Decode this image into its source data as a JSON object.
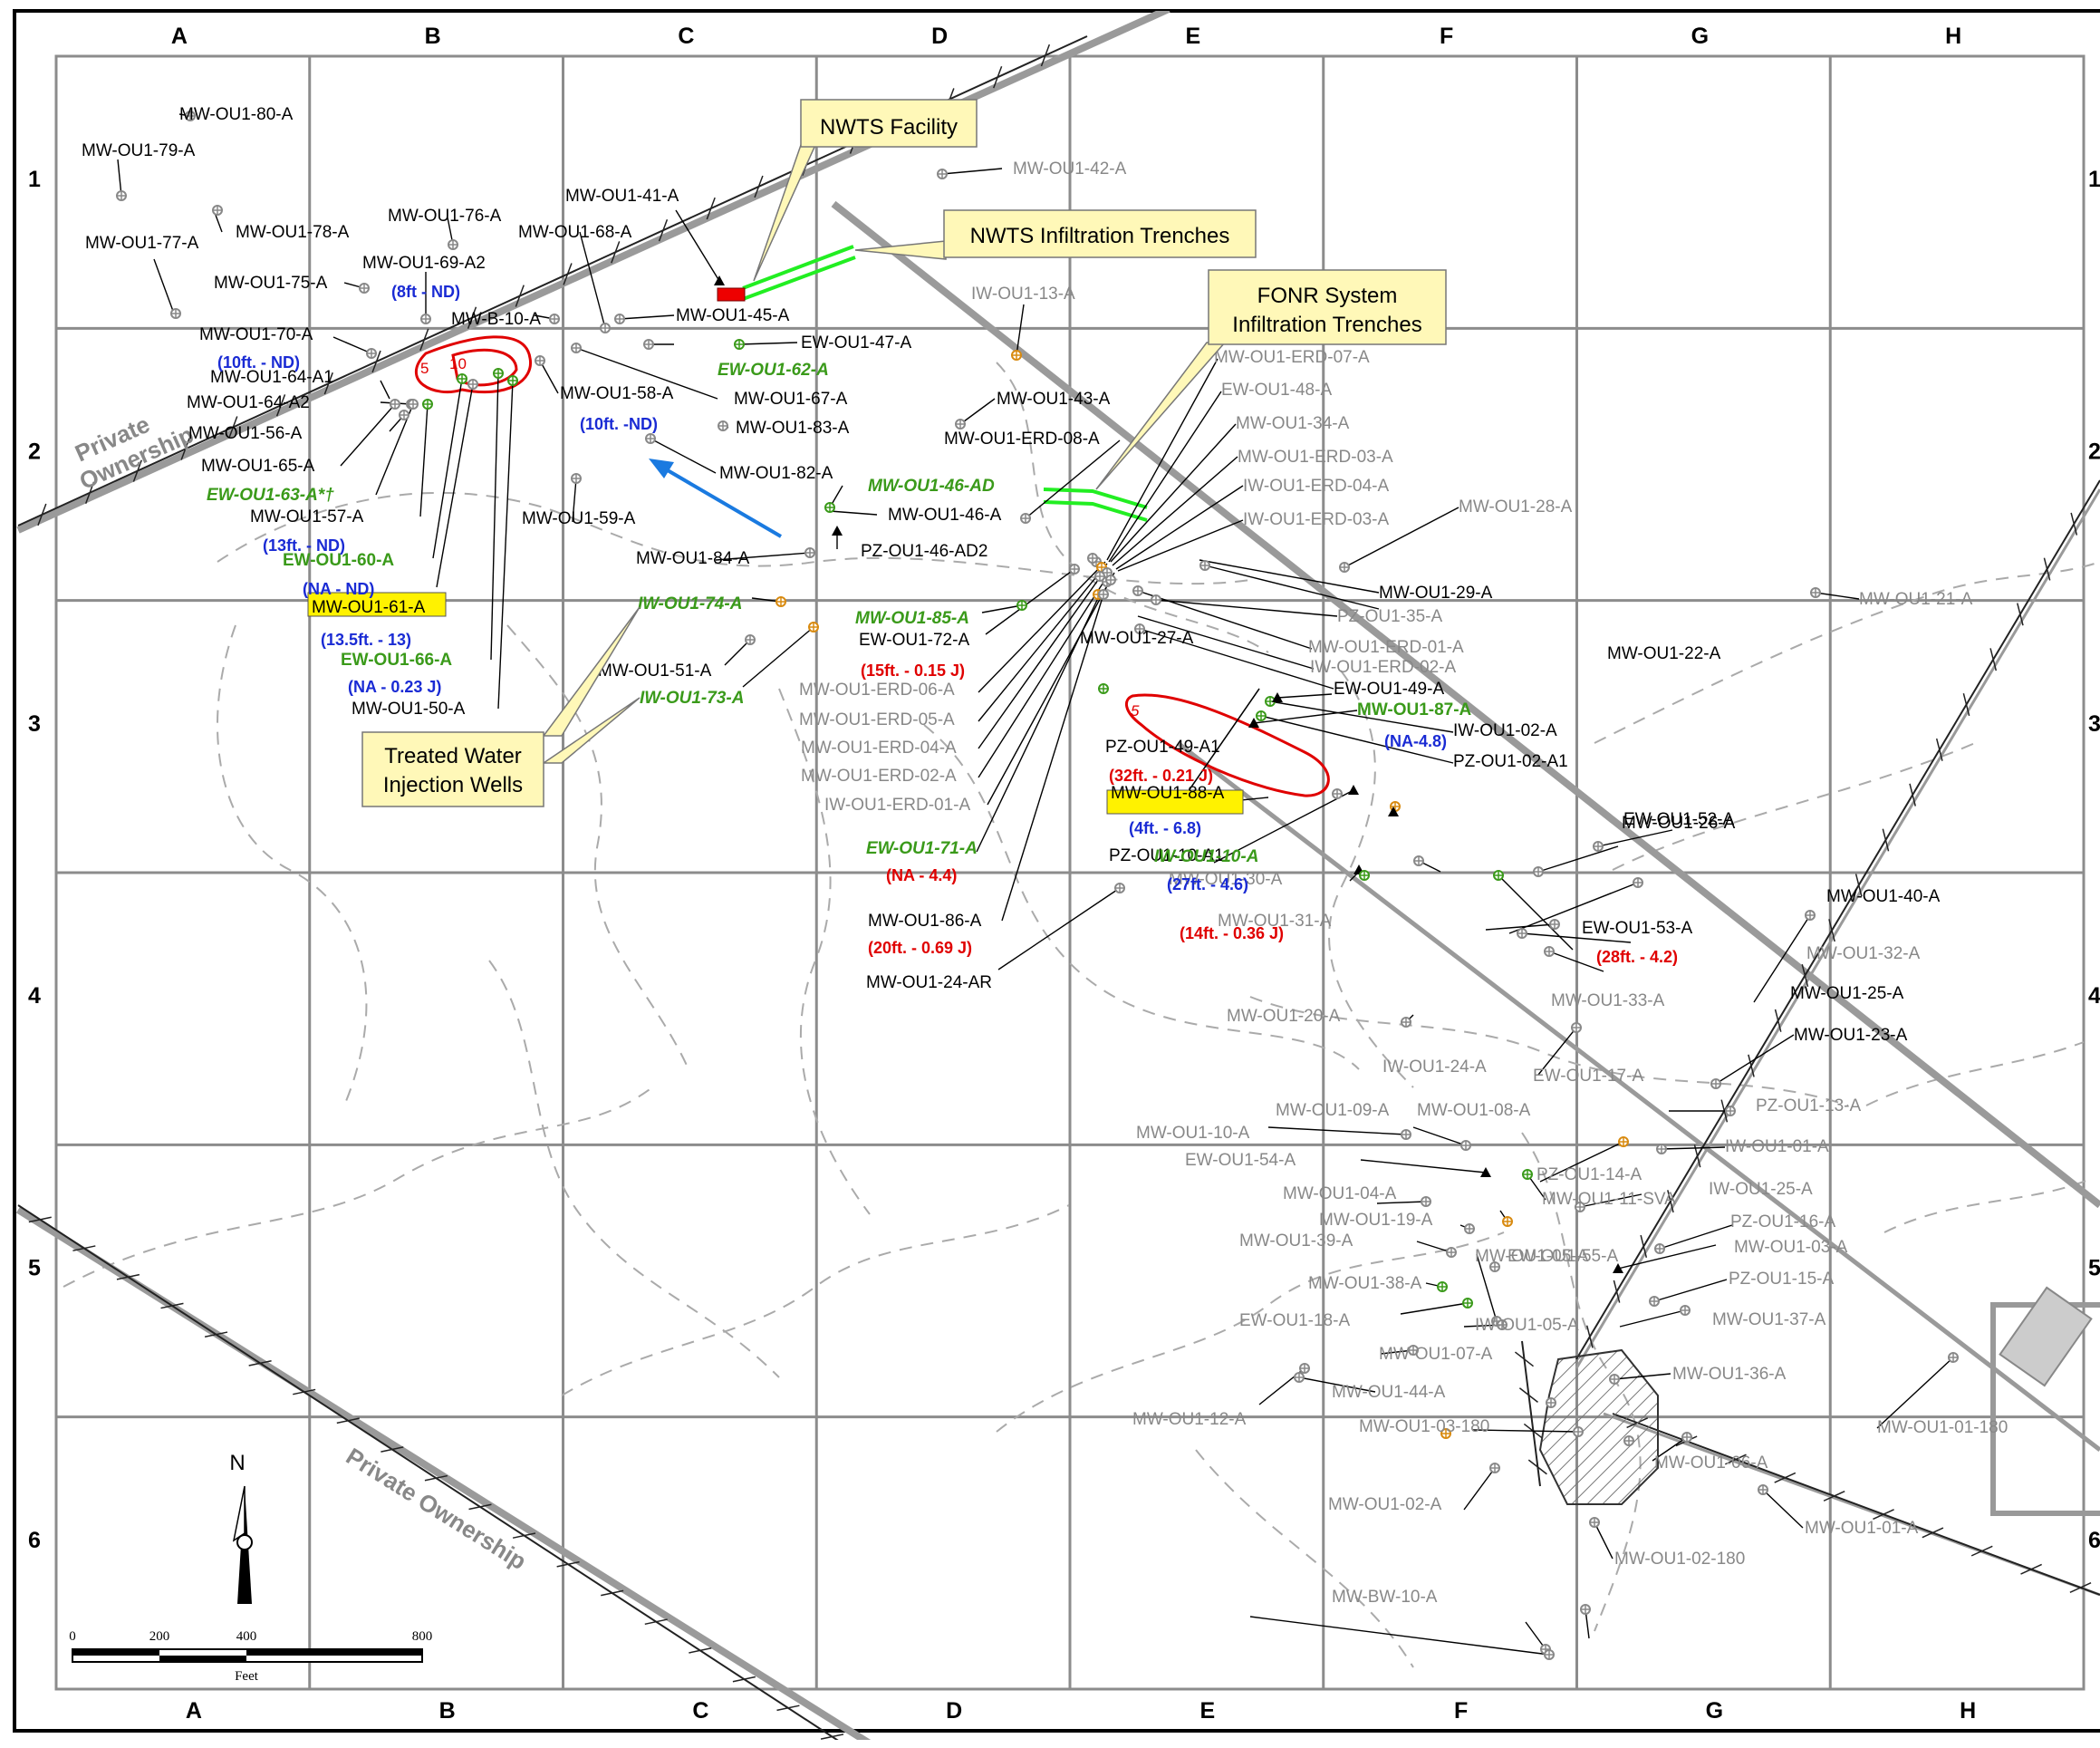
{
  "grid": {
    "columns": [
      "A",
      "B",
      "C",
      "D",
      "E",
      "F",
      "G",
      "H"
    ],
    "rows": [
      "1",
      "2",
      "3",
      "4",
      "5",
      "6"
    ]
  },
  "callouts": {
    "nwts_facility": "NWTS Facility",
    "nwts_trenches": "NWTS Infiltration Trenches",
    "fonr_line1": "FONR System",
    "fonr_line2": "Infiltration Trenches",
    "treated_line1": "Treated Water",
    "treated_line2": "Injection Wells"
  },
  "ownership_label": "Private Ownership",
  "ownership_label_upper": [
    "Private",
    "Ownership"
  ],
  "contour_labels": [
    "5",
    "10",
    "5"
  ],
  "scale_bar": {
    "ticks": [
      "0",
      "200",
      "400",
      "800"
    ],
    "unit": "Feet"
  },
  "north_arrow": "N",
  "colors": {
    "grid": "#8c8c8c",
    "trench": "#22ee22",
    "facility": "#ee0000",
    "callout_fill": "#fff8b8",
    "highlight": "#fff200",
    "flow_arrow": "#1a7ae0",
    "ndvalue": "#1a2bd4",
    "detect": "#e00000",
    "green_well": "#3a9a1a"
  },
  "wells": [
    {
      "label": "MW-OU1-80-A",
      "style": "wl"
    },
    {
      "label": "MW-OU1-79-A",
      "style": "wl"
    },
    {
      "label": "MW-OU1-78-A",
      "style": "wl"
    },
    {
      "label": "MW-OU1-77-A",
      "style": "wl"
    },
    {
      "label": "MW-OU1-76-A",
      "style": "wl"
    },
    {
      "label": "MW-OU1-69-A2",
      "style": "wl"
    },
    {
      "label": "MW-OU1-75-A",
      "style": "wl"
    },
    {
      "label": "MW-OU1-41-A",
      "style": "wl"
    },
    {
      "label": "MW-OU1-68-A",
      "style": "wl"
    },
    {
      "label": "MW-B-10-A",
      "style": "wl"
    },
    {
      "label": "MW-OU1-45-A",
      "style": "wl"
    },
    {
      "label": "MW-OU1-70-A",
      "style": "wl"
    },
    {
      "label": "EW-OU1-47-A",
      "style": "wl"
    },
    {
      "label": "EW-OU1-62-A",
      "style": "wgr"
    },
    {
      "label": "MW-OU1-64-A1",
      "style": "wl"
    },
    {
      "label": "MW-OU1-64-A2",
      "style": "wl"
    },
    {
      "label": "MW-OU1-58-A",
      "style": "wl"
    },
    {
      "label": "MW-OU1-67-A",
      "style": "wl"
    },
    {
      "label": "MW-OU1-56-A",
      "style": "wl"
    },
    {
      "label": "MW-OU1-83-A",
      "style": "wl"
    },
    {
      "label": "MW-OU1-65-A",
      "style": "wl"
    },
    {
      "label": "MW-OU1-82-A",
      "style": "wl"
    },
    {
      "label": "EW-OU1-63-A*†",
      "style": "wgr"
    },
    {
      "label": "MW-OU1-57-A",
      "style": "wl"
    },
    {
      "label": "MW-OU1-59-A",
      "style": "wl"
    },
    {
      "label": "EW-OU1-60-A",
      "style": "wgb"
    },
    {
      "label": "MW-OU1-84-A",
      "style": "wl"
    },
    {
      "label": "MW-OU1-61-A",
      "style": "wl"
    },
    {
      "label": "IW-OU1-74-A",
      "style": "wgr"
    },
    {
      "label": "EW-OU1-66-A",
      "style": "wgb"
    },
    {
      "label": "MW-OU1-50-A",
      "style": "wl"
    },
    {
      "label": "MW-OU1-51-A",
      "style": "wl"
    },
    {
      "label": "IW-OU1-73-A",
      "style": "wgr"
    },
    {
      "label": "MW-OU1-42-A",
      "style": "wg"
    },
    {
      "label": "IW-OU1-13-A",
      "style": "wg"
    },
    {
      "label": "MW-OU1-43-A",
      "style": "wl"
    },
    {
      "label": "MW-OU1-ERD-08-A",
      "style": "wl"
    },
    {
      "label": "MW-OU1-46-AD",
      "style": "wgr"
    },
    {
      "label": "MW-OU1-46-A",
      "style": "wl"
    },
    {
      "label": "PZ-OU1-46-AD2",
      "style": "wl"
    },
    {
      "label": "MW-OU1-85-A",
      "style": "wgr"
    },
    {
      "label": "EW-OU1-72-A",
      "style": "wl"
    },
    {
      "label": "MW-OU1-ERD-06-A",
      "style": "wg"
    },
    {
      "label": "MW-OU1-ERD-05-A",
      "style": "wg"
    },
    {
      "label": "MW-OU1-ERD-04-A",
      "style": "wg"
    },
    {
      "label": "MW-OU1-ERD-02-A",
      "style": "wg"
    },
    {
      "label": "IW-OU1-ERD-01-A",
      "style": "wg"
    },
    {
      "label": "EW-OU1-71-A",
      "style": "wgr"
    },
    {
      "label": "MW-OU1-86-A",
      "style": "wl"
    },
    {
      "label": "MW-OU1-24-AR",
      "style": "wl"
    },
    {
      "label": "MW-OU1-ERD-07-A",
      "style": "wg"
    },
    {
      "label": "EW-OU1-48-A",
      "style": "wg"
    },
    {
      "label": "MW-OU1-34-A",
      "style": "wg"
    },
    {
      "label": "MW-OU1-ERD-03-A",
      "style": "wg"
    },
    {
      "label": "IW-OU1-ERD-04-A",
      "style": "wg"
    },
    {
      "label": "IW-OU1-ERD-03-A",
      "style": "wg"
    },
    {
      "label": "MW-OU1-28-A",
      "style": "wg"
    },
    {
      "label": "MW-OU1-29-A",
      "style": "wl"
    },
    {
      "label": "MW-OU1-27-A",
      "style": "wl"
    },
    {
      "label": "PZ-OU1-35-A",
      "style": "wg"
    },
    {
      "label": "MW-OU1-ERD-01-A",
      "style": "wg"
    },
    {
      "label": "IW-OU1-ERD-02-A",
      "style": "wg"
    },
    {
      "label": "EW-OU1-49-A",
      "style": "wl"
    },
    {
      "label": "MW-OU1-87-A",
      "style": "wgb"
    },
    {
      "label": "PZ-OU1-49-A1",
      "style": "wl"
    },
    {
      "label": "IW-OU1-02-A",
      "style": "wl"
    },
    {
      "label": "PZ-OU1-02-A1",
      "style": "wl"
    },
    {
      "label": "MW-OU1-88-A",
      "style": "wl"
    },
    {
      "label": "MW-OU1-26-A",
      "style": "wl"
    },
    {
      "label": "PZ-OU1-10-A1",
      "style": "wl"
    },
    {
      "label": "IW-OU1-10-A",
      "style": "wgr"
    },
    {
      "label": "MW-OU1-30-A",
      "style": "wg"
    },
    {
      "label": "MW-OU1-31-A",
      "style": "wg"
    },
    {
      "label": "MW-OU1-22-A",
      "style": "wl"
    },
    {
      "label": "MW-OU1-21-A",
      "style": "wg"
    },
    {
      "label": "EW-OU1-52-A",
      "style": "wl"
    },
    {
      "label": "MW-OU1-40-A",
      "style": "wl"
    },
    {
      "label": "EW-OU1-53-A",
      "style": "wl"
    },
    {
      "label": "MW-OU1-32-A",
      "style": "wg"
    },
    {
      "label": "MW-OU1-33-A",
      "style": "wg"
    },
    {
      "label": "MW-OU1-25-A",
      "style": "wl"
    },
    {
      "label": "MW-OU1-23-A",
      "style": "wl"
    },
    {
      "label": "MW-OU1-20-A",
      "style": "wg"
    },
    {
      "label": "IW-OU1-24-A",
      "style": "wg"
    },
    {
      "label": "EW-OU1-17-A",
      "style": "wg"
    },
    {
      "label": "PZ-OU1-13-A",
      "style": "wg"
    },
    {
      "label": "MW-OU1-09-A",
      "style": "wg"
    },
    {
      "label": "MW-OU1-08-A",
      "style": "wg"
    },
    {
      "label": "MW-OU1-10-A",
      "style": "wg"
    },
    {
      "label": "IW-OU1-01-A",
      "style": "wg"
    },
    {
      "label": "EW-OU1-54-A",
      "style": "wg"
    },
    {
      "label": "PZ-OU1-14-A",
      "style": "wg"
    },
    {
      "label": "IW-OU1-25-A",
      "style": "wg"
    },
    {
      "label": "MW-OU1-04-A",
      "style": "wg"
    },
    {
      "label": "MW-OU1-11-SVA",
      "style": "wg"
    },
    {
      "label": "MW-OU1-19-A",
      "style": "wg"
    },
    {
      "label": "PZ-OU1-16-A",
      "style": "wg"
    },
    {
      "label": "MW-OU1-39-A",
      "style": "wg"
    },
    {
      "label": "EW-OU1-55-A",
      "style": "wg"
    },
    {
      "label": "MW-OU1-03-A",
      "style": "wg"
    },
    {
      "label": "MW-OU1-38-A",
      "style": "wg"
    },
    {
      "label": "MW-OU1-05-A",
      "style": "wg"
    },
    {
      "label": "PZ-OU1-15-A",
      "style": "wg"
    },
    {
      "label": "EW-OU1-18-A",
      "style": "wg"
    },
    {
      "label": "IW-OU1-05-A",
      "style": "wg"
    },
    {
      "label": "MW-OU1-37-A",
      "style": "wg"
    },
    {
      "label": "MW-OU1-07-A",
      "style": "wg"
    },
    {
      "label": "MW-OU1-44-A",
      "style": "wg"
    },
    {
      "label": "MW-OU1-12-A",
      "style": "wg"
    },
    {
      "label": "MW-OU1-36-A",
      "style": "wg"
    },
    {
      "label": "MW-OU1-03-180",
      "style": "wg"
    },
    {
      "label": "MW-OU1-01-180",
      "style": "wg"
    },
    {
      "label": "MW-OU1-06-A",
      "style": "wg"
    },
    {
      "label": "MW-OU1-02-A",
      "style": "wg"
    },
    {
      "label": "MW-OU1-01-A",
      "style": "wg"
    },
    {
      "label": "MW-OU1-02-180",
      "style": "wg"
    },
    {
      "label": "MW-BW-10-A",
      "style": "wg"
    }
  ],
  "values": [
    {
      "label": "(8ft - ND)",
      "style": "vb"
    },
    {
      "label": "(10ft. - ND)",
      "style": "vb"
    },
    {
      "label": "(10ft. -ND)",
      "style": "vb"
    },
    {
      "label": "(13ft. - ND)",
      "style": "vb"
    },
    {
      "label": "(NA - ND)",
      "style": "vb"
    },
    {
      "label": "(13.5ft. - 13)",
      "style": "vb"
    },
    {
      "label": "(NA - 0.23 J)",
      "style": "vb"
    },
    {
      "label": "(15ft. - 0.15 J)",
      "style": "vr"
    },
    {
      "label": "(NA - 4.4)",
      "style": "vr"
    },
    {
      "label": "(20ft. - 0.69 J)",
      "style": "vr"
    },
    {
      "label": "(NA-4.8)",
      "style": "vb"
    },
    {
      "label": "(32ft. - 0.21 J)",
      "style": "vr"
    },
    {
      "label": "(4ft. - 6.8)",
      "style": "vb"
    },
    {
      "label": "(27ft. - 4.6)",
      "style": "vb"
    },
    {
      "label": "(14ft. - 0.36 J)",
      "style": "vr"
    },
    {
      "label": "(28ft. - 4.2)",
      "style": "vr"
    }
  ]
}
